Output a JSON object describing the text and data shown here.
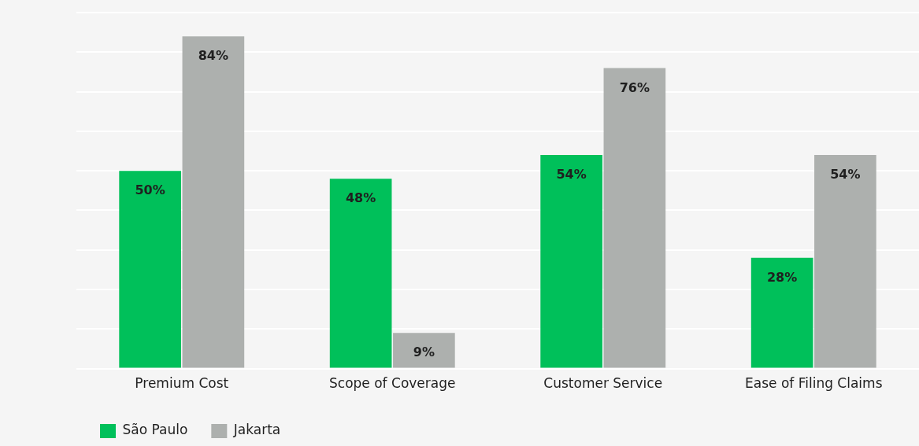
{
  "chart_data": {
    "type": "bar",
    "categories": [
      "Premium Cost",
      "Scope of Coverage",
      "Customer Service",
      "Ease of Filing Claims"
    ],
    "series": [
      {
        "name": "São Paulo",
        "color": "#00c05a",
        "values": [
          50,
          48,
          54,
          28
        ],
        "value_labels": [
          "50%",
          "48%",
          "54%",
          "28%"
        ]
      },
      {
        "name": "Jakarta",
        "color": "#adb0ae",
        "values": [
          84,
          9,
          76,
          54
        ],
        "value_labels": [
          "84%",
          "9%",
          "76%",
          "54%"
        ]
      }
    ],
    "ylim": [
      0,
      90
    ],
    "yticks": [
      {
        "value": 0,
        "label": null
      },
      {
        "value": 10,
        "label": null
      },
      {
        "value": 20,
        "label": null
      },
      {
        "value": 30,
        "label": null
      },
      {
        "value": 40,
        "label": null
      },
      {
        "value": 50,
        "label": null
      },
      {
        "value": 60,
        "label": null
      },
      {
        "value": 70,
        "label": null
      },
      {
        "value": 80,
        "label": null
      },
      {
        "value": 90,
        "label": null
      }
    ],
    "grid": "y",
    "legend": "bottom left",
    "tick_labels": "x"
  }
}
